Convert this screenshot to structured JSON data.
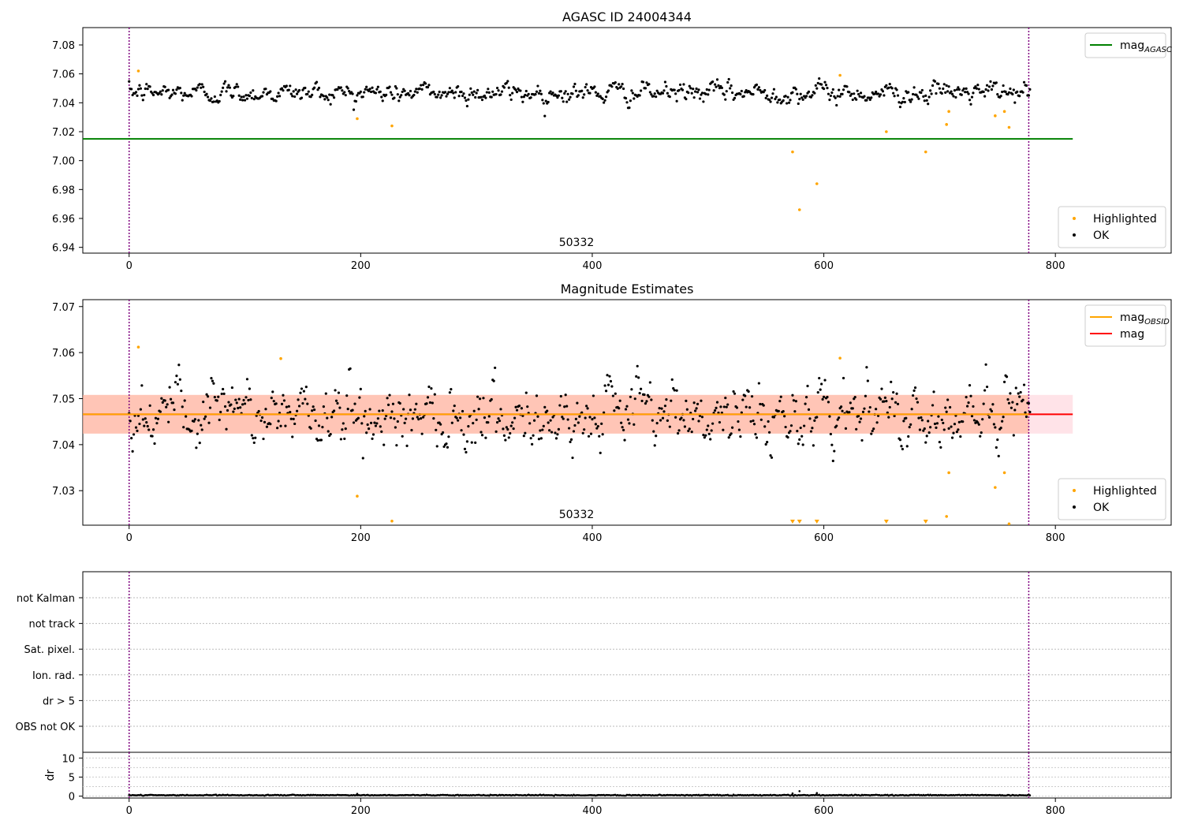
{
  "chart_data": [
    {
      "type": "scatter",
      "title": "AGASC ID 24004344",
      "xlim": [
        -40,
        900
      ],
      "ylim": [
        6.936,
        7.092
      ],
      "xticks": [
        0,
        200,
        400,
        600,
        800
      ],
      "yticks": [
        6.94,
        6.96,
        6.98,
        7.0,
        7.02,
        7.04,
        7.06,
        7.08
      ],
      "ytick_labels": [
        "6.94",
        "6.96",
        "6.98",
        "7.00",
        "7.02",
        "7.04",
        "7.06",
        "7.08"
      ],
      "obsid_label": "50332",
      "obsid_label_x": 387,
      "vlines": [
        0,
        777
      ],
      "ok_series": {
        "name": "OK",
        "color": "#000000",
        "x_start": 0,
        "x_end": 778,
        "baseline": 7.047,
        "noise": 0.0035
      },
      "highlighted": {
        "name": "Highlighted",
        "color": "#ffa500",
        "points": [
          [
            8,
            7.062
          ],
          [
            197,
            7.029
          ],
          [
            227,
            7.024
          ],
          [
            573,
            7.006
          ],
          [
            579,
            6.966
          ],
          [
            594,
            6.984
          ],
          [
            614,
            7.059
          ],
          [
            654,
            7.02
          ],
          [
            688,
            7.006
          ],
          [
            706,
            7.025
          ],
          [
            708,
            7.034
          ],
          [
            748,
            7.031
          ],
          [
            756,
            7.034
          ],
          [
            760,
            7.023
          ]
        ]
      },
      "lines": [
        {
          "name": "mag_AGASC",
          "label": "mag",
          "subscript": "AGASC",
          "y": 7.015,
          "x_range": [
            -40,
            815
          ],
          "color": "#008000"
        }
      ],
      "legend_top": {
        "placement": "top-right",
        "entries": [
          {
            "label": "mag",
            "subscript": "AGASC",
            "color": "#008000"
          }
        ]
      },
      "legend_bottom": {
        "placement": "bottom-right",
        "entries": [
          {
            "label": "Highlighted",
            "color": "#ffa500"
          },
          {
            "label": "OK",
            "color": "#000000"
          }
        ]
      }
    },
    {
      "type": "scatter",
      "title": "Magnitude Estimates",
      "xlim": [
        -40,
        900
      ],
      "ylim": [
        7.0225,
        7.0715
      ],
      "xticks": [
        0,
        200,
        400,
        600,
        800
      ],
      "yticks": [
        7.03,
        7.04,
        7.05,
        7.06,
        7.07
      ],
      "ytick_labels": [
        "7.03",
        "7.04",
        "7.05",
        "7.06",
        "7.07"
      ],
      "obsid_label": "50332",
      "obsid_label_x": 387,
      "vlines": [
        0,
        777
      ],
      "ok_series": {
        "name": "OK",
        "color": "#000000",
        "x_start": 0,
        "x_end": 778,
        "baseline": 7.0467,
        "noise": 0.0038
      },
      "highlighted": {
        "name": "Highlighted",
        "color": "#ffa500",
        "points": [
          [
            8,
            7.0612
          ],
          [
            131,
            7.0587
          ],
          [
            197,
            7.0288
          ],
          [
            227,
            7.0234
          ],
          [
            614,
            7.0588
          ],
          [
            708,
            7.0339
          ],
          [
            706,
            7.0244
          ],
          [
            748,
            7.0307
          ],
          [
            756,
            7.0339
          ],
          [
            760,
            7.0228
          ]
        ]
      },
      "offscale_markers": [
        573,
        579,
        594,
        654,
        688
      ],
      "bands": [
        {
          "x_range": [
            -40,
            815
          ],
          "y_range": [
            7.0424,
            7.0508
          ],
          "color": "#ffc0cb"
        },
        {
          "x_range": [
            -40,
            777
          ],
          "y_range": [
            7.0424,
            7.0508
          ],
          "color": "#ffa07a"
        }
      ],
      "lines": [
        {
          "name": "mag",
          "label": "mag",
          "y": 7.0466,
          "x_range": [
            -40,
            815
          ],
          "color": "#ff0000"
        },
        {
          "name": "mag_OBSID",
          "label": "mag",
          "subscript": "OBSID",
          "y": 7.0466,
          "x_range": [
            -40,
            777
          ],
          "color": "#ffa500"
        }
      ],
      "legend_top": {
        "placement": "top-right",
        "entries": [
          {
            "label": "mag",
            "subscript": "OBSID",
            "color": "#ffa500"
          },
          {
            "label": "mag",
            "color": "#ff0000"
          }
        ]
      },
      "legend_bottom": {
        "placement": "bottom-right",
        "entries": [
          {
            "label": "Highlighted",
            "color": "#ffa500"
          },
          {
            "label": "OK",
            "color": "#000000"
          }
        ]
      }
    },
    {
      "type": "table",
      "title": "",
      "xlim": [
        -40,
        900
      ],
      "vlines": [
        0,
        777
      ],
      "flag_labels": [
        "not Kalman",
        "not track",
        "Sat. pixel.",
        "Ion. rad.",
        "dr > 5",
        "OBS not OK"
      ]
    },
    {
      "type": "scatter",
      "title": "",
      "ylabel": "dr",
      "xlim": [
        -40,
        900
      ],
      "ylim": [
        -0.5,
        11.5
      ],
      "xticks": [
        0,
        200,
        400,
        600,
        800
      ],
      "yticks": [
        0,
        5,
        10
      ],
      "ytick_labels": [
        "0",
        "5",
        "10"
      ],
      "vlines": [
        0,
        777
      ],
      "dr_series": {
        "x_start": 0,
        "x_end": 778,
        "baseline": 0.25,
        "noise": 0.12,
        "spikes": [
          [
            579,
            1.3
          ],
          [
            594,
            0.8
          ],
          [
            197,
            0.6
          ],
          [
            573,
            0.7
          ]
        ]
      }
    }
  ]
}
